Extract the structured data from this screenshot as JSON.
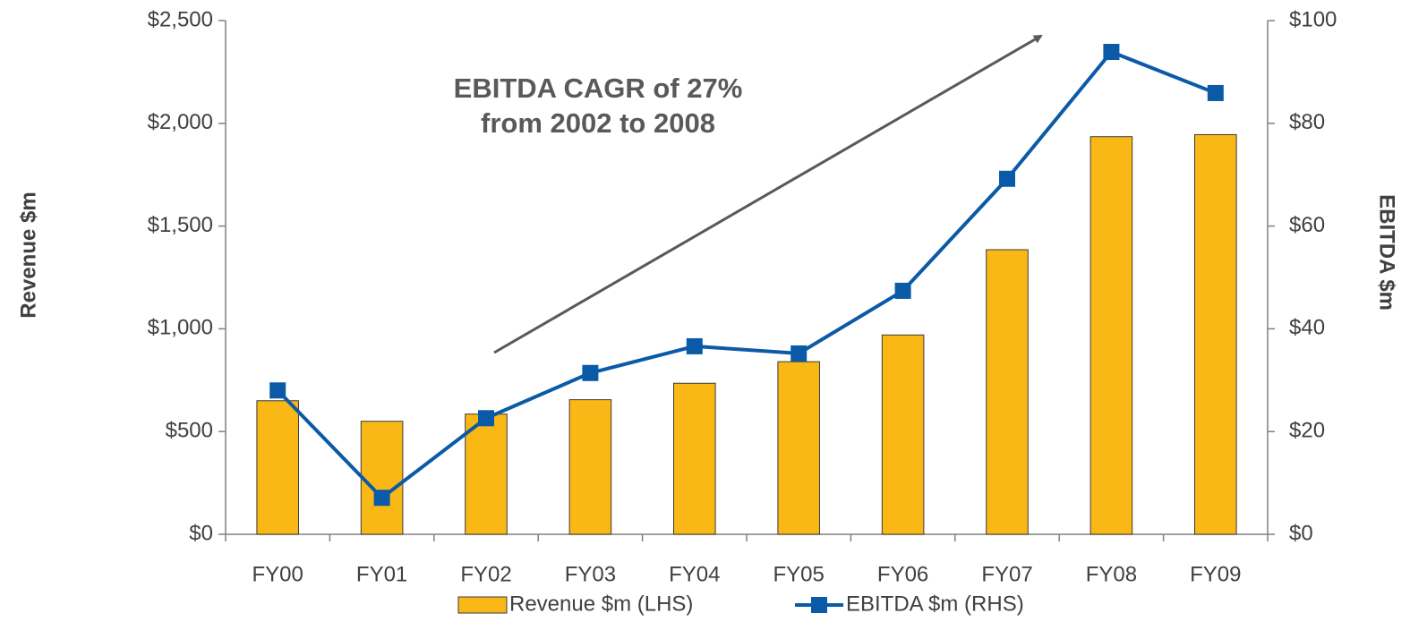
{
  "chart_data": {
    "type": "bar-line",
    "annotation": [
      "EBITDA CAGR of 27%",
      "from 2002 to 2008"
    ],
    "y_label": "Revenue $m",
    "y2_label": "EBITDA $m",
    "categories": [
      "FY00",
      "FY01",
      "FY02",
      "FY03",
      "FY04",
      "FY05",
      "FY06",
      "FY07",
      "FY08",
      "FY09"
    ],
    "series": [
      {
        "name": "Revenue $m (LHS)",
        "type": "bar",
        "color": "#F9B816",
        "axis": "y",
        "values": [
          650,
          550,
          585,
          655,
          735,
          840,
          970,
          1385,
          1935,
          1945
        ]
      },
      {
        "name": "EBITDA $m (RHS)",
        "type": "line",
        "color": "#0B5AA8",
        "axis": "y2",
        "values": [
          28,
          7.1,
          22.6,
          31.4,
          36.6,
          35.2,
          47.4,
          69.2,
          93.9,
          85.9
        ]
      }
    ],
    "ylim": [
      0,
      2500
    ],
    "yticks": [
      {
        "value": 0,
        "label": "$0"
      },
      {
        "value": 500,
        "label": "$500"
      },
      {
        "value": 1000,
        "label": "$1,000"
      },
      {
        "value": 1500,
        "label": "$1,500"
      },
      {
        "value": 2000,
        "label": "$2,000"
      },
      {
        "value": 2500,
        "label": "$2,500"
      }
    ],
    "y2lim": [
      0,
      100
    ],
    "y2ticks": [
      {
        "value": 0,
        "label": "$0"
      },
      {
        "value": 20,
        "label": "$20"
      },
      {
        "value": 40,
        "label": "$40"
      },
      {
        "value": 60,
        "label": "$60"
      },
      {
        "value": 80,
        "label": "$80"
      },
      {
        "value": 100,
        "label": "$100"
      }
    ],
    "legend": "bottom",
    "grid": false
  }
}
